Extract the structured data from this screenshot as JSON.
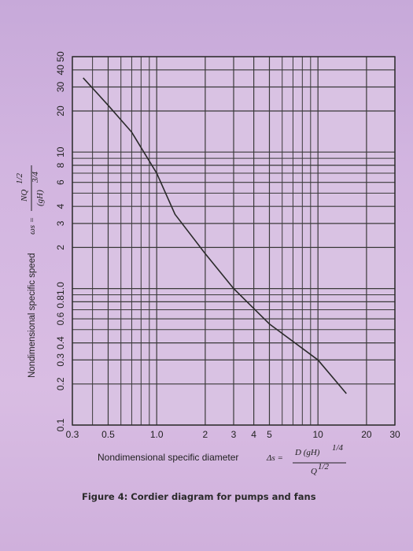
{
  "chart_data": {
    "type": "line",
    "title": "",
    "x_scale": "log",
    "y_scale": "log",
    "xlim": [
      0.3,
      30
    ],
    "ylim": [
      0.1,
      50
    ],
    "x_ticks": [
      "0.3",
      "0.5",
      "1.0",
      "2",
      "3",
      "4",
      "5",
      "10",
      "20",
      "30"
    ],
    "x_tick_values": [
      0.3,
      0.5,
      1.0,
      2,
      3,
      4,
      5,
      10,
      20,
      30
    ],
    "y_ticks": [
      "0.1",
      "0.2",
      "0.3",
      "0.4",
      "0.6",
      "0.8",
      "1.0",
      "2",
      "3",
      "4",
      "6",
      "8",
      "10",
      "20",
      "30",
      "40",
      "50"
    ],
    "y_tick_values": [
      0.1,
      0.2,
      0.3,
      0.4,
      0.6,
      0.8,
      1.0,
      2,
      3,
      4,
      6,
      8,
      10,
      20,
      30,
      40,
      50
    ],
    "grid": true,
    "series": [
      {
        "x": [
          0.35,
          0.5,
          0.7,
          1.0,
          1.3,
          2.0,
          3.0,
          5.0,
          10.0,
          15.0
        ],
        "y": [
          35,
          22,
          14,
          7,
          3.5,
          1.8,
          1.0,
          0.55,
          0.3,
          0.17
        ]
      }
    ],
    "xlabel": {
      "prefix": "Nondimensional specific diameter",
      "symbol": "Δs =",
      "numerator": "D (gH)",
      "numerator_exp": "1/4",
      "denominator": "Q",
      "denominator_exp": "1/2"
    },
    "ylabel": {
      "prefix": "Nondimensional specific speed",
      "symbol": "ωs =",
      "numerator": "NQ",
      "numerator_exp": "1/2",
      "denominator": "(gH)",
      "denominator_exp": "3/4"
    }
  },
  "caption": "Figure 4: Cordier diagram for pumps and fans",
  "colors": {
    "grid": "#3a3a3a",
    "curve": "#2a2a2a",
    "plot_bg": "#d9c2e3"
  }
}
